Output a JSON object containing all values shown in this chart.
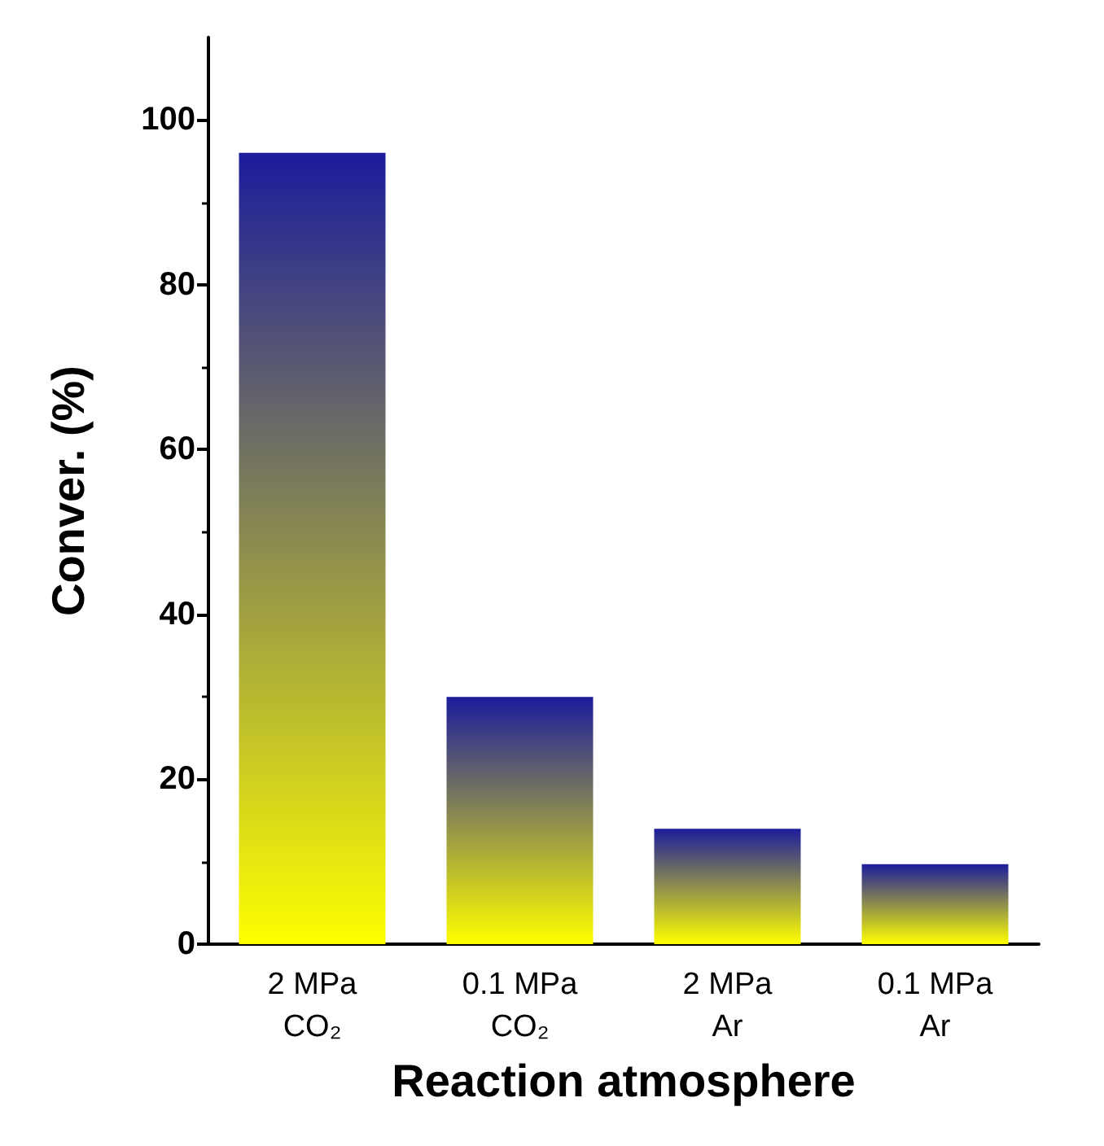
{
  "chart_data": {
    "type": "bar",
    "xlabel": "Reaction atmosphere",
    "ylabel": "Conver. (%)",
    "categories": [
      "2 MPa\nCO₂",
      "0.1 MPa\nCO₂",
      "2 MPa\nAr",
      "0.1 MPa\nAr"
    ],
    "values": [
      96,
      30,
      14,
      9.7
    ],
    "color": "#1c1c9c",
    "ylim": [
      0,
      110
    ],
    "yticks": [
      0,
      20,
      40,
      60,
      80,
      100
    ],
    "grid": false
  }
}
